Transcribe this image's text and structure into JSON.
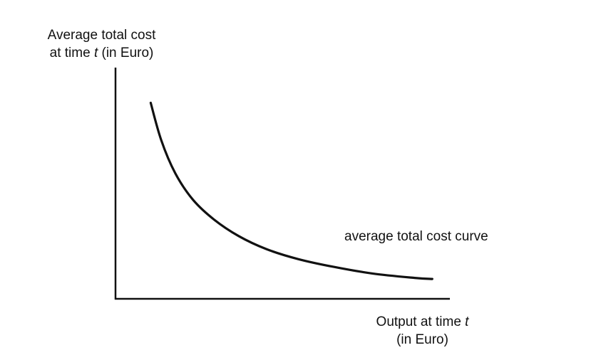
{
  "chart_data": {
    "type": "line",
    "title": "",
    "ylabel": {
      "line1": "Average total cost",
      "line2_prefix": "at time ",
      "line2_var": "t",
      "line2_suffix": " (in Euro)"
    },
    "xlabel": {
      "line1_prefix": "Output at time ",
      "line1_var": "t",
      "line2": "(in Euro)"
    },
    "series": [
      {
        "name": "average total cost curve",
        "x": [
          1.0,
          1.3,
          1.7,
          2.2,
          2.8,
          3.5,
          4.3,
          5.2,
          6.2,
          7.3,
          8.5,
          9.0
        ],
        "y": [
          8.9,
          7.2,
          5.7,
          4.5,
          3.6,
          2.85,
          2.25,
          1.8,
          1.45,
          1.15,
          0.95,
          0.9
        ]
      }
    ],
    "xlim": [
      0,
      9.5
    ],
    "ylim": [
      0,
      10.5
    ],
    "grid": false,
    "legend": "none",
    "colors": {
      "curve": "#111111",
      "axes": "#111111"
    }
  }
}
